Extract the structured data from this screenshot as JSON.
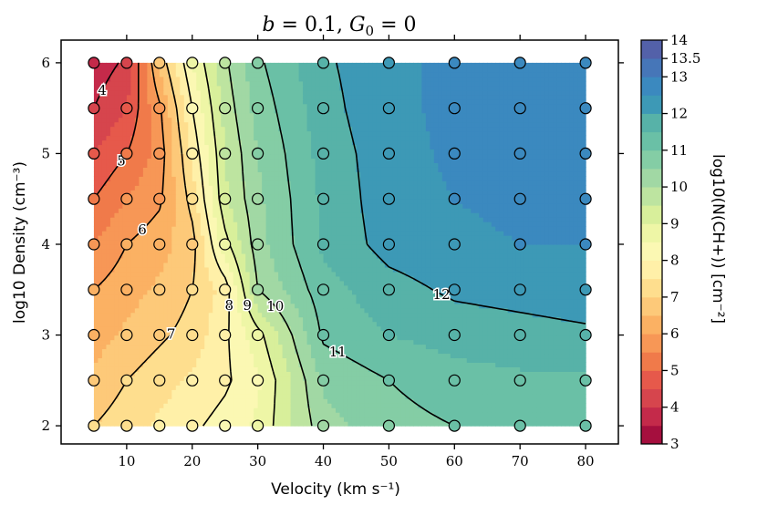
{
  "chart_data": {
    "type": "heatmap",
    "subtype": "filled-contour-with-scatter",
    "title": "b = 0.1, G0 = 0",
    "xlabel": "Velocity (km s⁻¹)",
    "ylabel": "log10 Density (cm⁻³)",
    "colorbar_label": "log10(N(CH+)) [cm⁻²]",
    "xlim": [
      0,
      85
    ],
    "ylim": [
      1.8,
      6.25
    ],
    "x_ticks": [
      10,
      20,
      30,
      40,
      50,
      60,
      70,
      80
    ],
    "y_ticks": [
      2,
      3,
      4,
      5,
      6
    ],
    "x": [
      5,
      10,
      15,
      20,
      25,
      30,
      40,
      50,
      60,
      70,
      80
    ],
    "y": [
      2,
      2.5,
      3,
      3.5,
      4,
      4.5,
      5,
      5.5,
      6
    ],
    "z": [
      [
        7.0,
        7.3,
        7.6,
        7.9,
        8.2,
        8.6,
        10.3,
        10.8,
        11.0,
        11.0,
        11.0
      ],
      [
        6.6,
        7.0,
        7.3,
        7.6,
        7.9,
        8.4,
        10.6,
        11.0,
        11.3,
        11.4,
        11.4
      ],
      [
        6.3,
        6.6,
        6.9,
        7.2,
        7.9,
        8.8,
        11.1,
        11.5,
        11.7,
        11.8,
        11.9
      ],
      [
        6.0,
        6.3,
        6.6,
        7.0,
        7.7,
        10.0,
        11.3,
        11.8,
        12.1,
        12.2,
        12.3
      ],
      [
        5.5,
        6.0,
        6.3,
        6.8,
        8.8,
        10.3,
        11.6,
        12.2,
        12.4,
        12.5,
        12.5
      ],
      [
        5.0,
        5.5,
        5.9,
        7.2,
        9.4,
        10.4,
        11.6,
        12.3,
        12.5,
        12.6,
        12.6
      ],
      [
        4.5,
        5.0,
        5.7,
        7.6,
        9.5,
        10.5,
        11.7,
        12.3,
        12.6,
        12.7,
        12.7
      ],
      [
        4.0,
        4.5,
        5.9,
        8.0,
        9.7,
        10.7,
        11.8,
        12.4,
        12.6,
        12.7,
        12.7
      ],
      [
        3.7,
        4.1,
        6.6,
        8.5,
        9.9,
        10.9,
        11.9,
        12.4,
        12.6,
        12.7,
        12.8
      ]
    ],
    "levels": [
      3,
      3.5,
      4,
      4.5,
      5,
      5.5,
      6,
      6.5,
      7,
      7.5,
      8,
      8.5,
      9,
      9.5,
      10,
      10.5,
      11,
      11.5,
      12,
      12.5,
      13,
      13.5,
      14
    ],
    "level_colors": [
      "#a50f3e",
      "#c42a4a",
      "#d6454d",
      "#e6594b",
      "#f07a4a",
      "#f79756",
      "#fbb163",
      "#fdc979",
      "#fede8e",
      "#fff0a8",
      "#fbf8b3",
      "#eef6a6",
      "#d8ef9b",
      "#bde4a0",
      "#a1d8a4",
      "#84cda5",
      "#6ac0a6",
      "#57b2a8",
      "#3d99b6",
      "#3b89bf",
      "#4676b8",
      "#5361a9"
    ],
    "colorbar_ticks": [
      "3",
      "4",
      "5",
      "6",
      "7",
      "8",
      "9",
      "10",
      "11",
      "12",
      "13",
      "13.5",
      "14"
    ],
    "contour_lines": [
      4,
      5,
      6,
      7,
      8,
      9,
      10,
      11,
      12
    ],
    "contour_labels": [
      "4",
      "5",
      "6",
      "7",
      "8",
      "9",
      "10",
      "11",
      "12"
    ]
  }
}
